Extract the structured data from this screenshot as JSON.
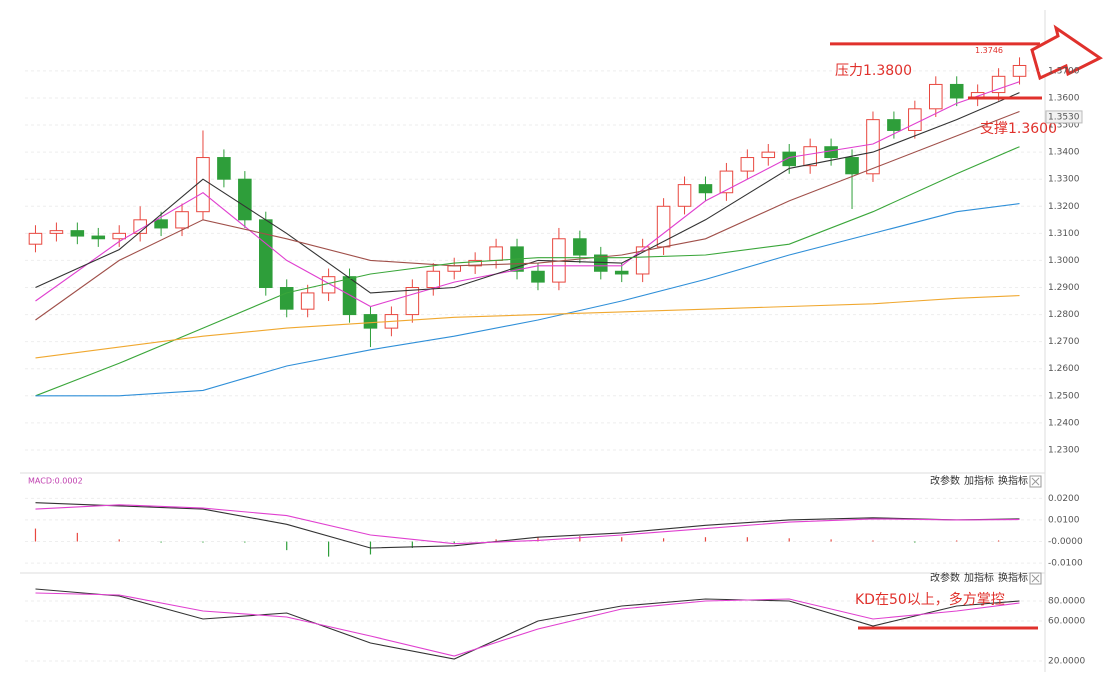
{
  "chart_data": [
    {
      "type": "candlestick",
      "up_color": "#e8473f",
      "down_color": "#2e9e3a",
      "open": [
        1.306,
        1.31,
        1.311,
        1.309,
        1.308,
        1.31,
        1.315,
        1.312,
        1.318,
        1.338,
        1.33,
        1.315,
        1.29,
        1.282,
        1.288,
        1.294,
        1.28,
        1.275,
        1.28,
        1.29,
        1.296,
        1.298,
        1.3,
        1.305,
        1.296,
        1.292,
        1.308,
        1.302,
        1.296,
        1.295,
        1.305,
        1.32,
        1.328,
        1.325,
        1.333,
        1.338,
        1.34,
        1.335,
        1.342,
        1.338,
        1.332,
        1.352,
        1.348,
        1.356,
        1.365,
        1.36,
        1.362,
        1.368
      ],
      "high": [
        1.313,
        1.314,
        1.314,
        1.312,
        1.313,
        1.32,
        1.318,
        1.321,
        1.348,
        1.341,
        1.333,
        1.318,
        1.293,
        1.291,
        1.297,
        1.297,
        1.283,
        1.283,
        1.293,
        1.299,
        1.301,
        1.303,
        1.308,
        1.308,
        1.299,
        1.312,
        1.311,
        1.305,
        1.299,
        1.308,
        1.323,
        1.331,
        1.331,
        1.336,
        1.341,
        1.343,
        1.343,
        1.345,
        1.345,
        1.341,
        1.355,
        1.355,
        1.359,
        1.368,
        1.368,
        1.365,
        1.371,
        1.375
      ],
      "low": [
        1.303,
        1.307,
        1.306,
        1.305,
        1.305,
        1.307,
        1.309,
        1.309,
        1.315,
        1.327,
        1.312,
        1.287,
        1.279,
        1.279,
        1.285,
        1.277,
        1.268,
        1.272,
        1.277,
        1.287,
        1.293,
        1.295,
        1.297,
        1.293,
        1.289,
        1.289,
        1.299,
        1.293,
        1.292,
        1.292,
        1.302,
        1.317,
        1.322,
        1.322,
        1.33,
        1.335,
        1.332,
        1.332,
        1.335,
        1.319,
        1.329,
        1.345,
        1.345,
        1.353,
        1.357,
        1.357,
        1.359,
        1.365
      ],
      "close": [
        1.31,
        1.311,
        1.309,
        1.308,
        1.31,
        1.315,
        1.312,
        1.318,
        1.338,
        1.33,
        1.315,
        1.29,
        1.282,
        1.288,
        1.294,
        1.28,
        1.275,
        1.28,
        1.29,
        1.296,
        1.298,
        1.3,
        1.305,
        1.296,
        1.292,
        1.308,
        1.302,
        1.296,
        1.295,
        1.305,
        1.32,
        1.328,
        1.325,
        1.333,
        1.338,
        1.34,
        1.335,
        1.342,
        1.338,
        1.332,
        1.352,
        1.348,
        1.356,
        1.365,
        1.36,
        1.362,
        1.368,
        1.372
      ],
      "series": [
        {
          "color": "#e040d0",
          "x": [
            0,
            4,
            8,
            12,
            16,
            20,
            24,
            28,
            32,
            36,
            40,
            44,
            47
          ],
          "values": [
            1.285,
            1.307,
            1.325,
            1.3,
            1.283,
            1.292,
            1.298,
            1.298,
            1.322,
            1.338,
            1.343,
            1.358,
            1.366
          ]
        },
        {
          "color": "#333333",
          "x": [
            0,
            4,
            8,
            12,
            16,
            20,
            24,
            28,
            32,
            36,
            40,
            44,
            47
          ],
          "values": [
            1.29,
            1.304,
            1.33,
            1.31,
            1.288,
            1.29,
            1.3,
            1.299,
            1.315,
            1.334,
            1.34,
            1.352,
            1.362
          ]
        },
        {
          "color": "#a0504a",
          "x": [
            0,
            4,
            8,
            12,
            16,
            20,
            24,
            28,
            32,
            36,
            40,
            44,
            47
          ],
          "values": [
            1.278,
            1.3,
            1.315,
            1.308,
            1.3,
            1.298,
            1.299,
            1.302,
            1.308,
            1.322,
            1.334,
            1.346,
            1.355
          ]
        },
        {
          "color": "#3aa63a",
          "x": [
            0,
            4,
            8,
            12,
            16,
            20,
            24,
            28,
            32,
            36,
            40,
            44,
            47
          ],
          "values": [
            1.25,
            1.262,
            1.275,
            1.288,
            1.295,
            1.299,
            1.301,
            1.301,
            1.302,
            1.306,
            1.318,
            1.332,
            1.342
          ]
        },
        {
          "color": "#2f8fd8",
          "x": [
            0,
            4,
            8,
            12,
            16,
            20,
            24,
            28,
            32,
            36,
            40,
            44,
            47
          ],
          "values": [
            1.25,
            1.25,
            1.252,
            1.261,
            1.267,
            1.272,
            1.278,
            1.285,
            1.293,
            1.302,
            1.31,
            1.318,
            1.321
          ]
        },
        {
          "color": "#f0a830",
          "x": [
            0,
            4,
            8,
            12,
            16,
            20,
            24,
            28,
            32,
            36,
            40,
            44,
            47
          ],
          "values": [
            1.264,
            1.268,
            1.272,
            1.275,
            1.277,
            1.279,
            1.28,
            1.281,
            1.282,
            1.283,
            1.284,
            1.286,
            1.287
          ]
        }
      ],
      "ylim": [
        1.2226,
        1.3888
      ],
      "yticks": [
        {
          "value": 1.23,
          "label": "1.2300"
        },
        {
          "value": 1.24,
          "label": "1.2400"
        },
        {
          "value": 1.25,
          "label": "1.2500"
        },
        {
          "value": 1.26,
          "label": "1.2600"
        },
        {
          "value": 1.27,
          "label": "1.2700"
        },
        {
          "value": 1.28,
          "label": "1.2800"
        },
        {
          "value": 1.29,
          "label": "1.2900"
        },
        {
          "value": 1.3,
          "label": "1.3000"
        },
        {
          "value": 1.31,
          "label": "1.3100"
        },
        {
          "value": 1.32,
          "label": "1.3200"
        },
        {
          "value": 1.33,
          "label": "1.3300"
        },
        {
          "value": 1.34,
          "label": "1.3400"
        },
        {
          "value": 1.35,
          "label": "1.3500"
        },
        {
          "value": 1.36,
          "label": "1.3600"
        },
        {
          "value": 1.37,
          "label": "1.3700"
        }
      ],
      "grid": true,
      "resistance": {
        "value": 1.38,
        "label": "压力1.3800"
      },
      "support": {
        "value": 1.36,
        "label": "支撑1.3600"
      },
      "last_price": 1.3746,
      "axis_price": {
        "value": 1.353,
        "label": "1.3530"
      }
    },
    {
      "type": "macd",
      "label": "MACD:0.0002",
      "buttons": [
        "改参数",
        "加指标",
        "换指标"
      ],
      "series": [
        {
          "color": "#333333",
          "x": [
            0,
            4,
            8,
            12,
            16,
            20,
            24,
            28,
            32,
            36,
            40,
            44,
            47
          ],
          "values": [
            0.018,
            0.0165,
            0.015,
            0.008,
            -0.003,
            -0.002,
            0.002,
            0.004,
            0.0075,
            0.01,
            0.011,
            0.01,
            0.0105
          ]
        },
        {
          "color": "#e040d0",
          "x": [
            0,
            4,
            8,
            12,
            16,
            20,
            24,
            28,
            32,
            36,
            40,
            44,
            47
          ],
          "values": [
            0.015,
            0.017,
            0.0155,
            0.012,
            0.003,
            -0.001,
            0.0005,
            0.003,
            0.006,
            0.009,
            0.0105,
            0.01,
            0.0102
          ]
        }
      ],
      "histogram": {
        "up_color": "#e8473f",
        "down_color": "#2e9e3a",
        "x": [
          0,
          2,
          4,
          6,
          8,
          10,
          12,
          14,
          16,
          18,
          20,
          22,
          24,
          26,
          28,
          30,
          32,
          34,
          36,
          38,
          40,
          42,
          44,
          46
        ],
        "values": [
          0.006,
          0.004,
          0.001,
          -0.0005,
          -0.0005,
          -0.0005,
          -0.004,
          -0.007,
          -0.006,
          -0.003,
          -0.001,
          0.001,
          0.002,
          0.0025,
          0.002,
          0.0015,
          0.002,
          0.002,
          0.0015,
          0.001,
          0.0005,
          -0.0005,
          0.0005,
          0.0005
        ]
      },
      "ylim": [
        -0.0132,
        0.0248
      ],
      "yticks": [
        {
          "value": 0.02,
          "label": "0.0200"
        },
        {
          "value": 0.01,
          "label": "0.0100"
        },
        {
          "value": 0,
          "label": "-0.0000"
        },
        {
          "value": -0.01,
          "label": "-0.0100"
        }
      ]
    },
    {
      "type": "kd",
      "buttons": [
        "改参数",
        "加指标",
        "换指标"
      ],
      "annotation": "KD在50以上，多方掌控",
      "series": [
        {
          "color": "#333333",
          "x": [
            0,
            4,
            8,
            12,
            16,
            20,
            24,
            28,
            32,
            36,
            40,
            44,
            47
          ],
          "values": [
            92,
            85,
            62,
            68,
            38,
            22,
            60,
            75,
            82,
            80,
            55,
            75,
            80
          ]
        },
        {
          "color": "#e040d0",
          "x": [
            0,
            4,
            8,
            12,
            16,
            20,
            24,
            28,
            32,
            36,
            40,
            44,
            47
          ],
          "values": [
            88,
            86,
            70,
            64,
            45,
            25,
            52,
            72,
            80,
            82,
            62,
            70,
            78
          ]
        }
      ],
      "ylim": [
        13,
        103
      ],
      "yticks": [
        {
          "value": 80,
          "label": "80.0000"
        },
        {
          "value": 60,
          "label": "60.0000"
        },
        {
          "value": 20,
          "label": "20.0000"
        }
      ]
    }
  ]
}
